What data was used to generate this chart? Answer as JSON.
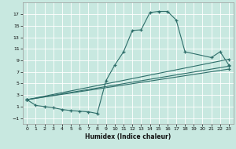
{
  "xlabel": "Humidex (Indice chaleur)",
  "bg_color": "#c8e8e0",
  "line_color": "#2e6e6a",
  "xlim": [
    -0.5,
    23.5
  ],
  "ylim": [
    -2.0,
    19.0
  ],
  "xticks": [
    0,
    1,
    2,
    3,
    4,
    5,
    6,
    7,
    8,
    9,
    10,
    11,
    12,
    13,
    14,
    15,
    16,
    17,
    18,
    19,
    20,
    21,
    22,
    23
  ],
  "yticks": [
    -1,
    1,
    3,
    5,
    7,
    9,
    11,
    13,
    15,
    17
  ],
  "curve1_x": [
    0,
    1,
    2,
    3,
    4,
    5,
    6,
    7,
    8,
    9,
    10,
    11,
    12,
    13,
    14,
    15,
    16,
    17,
    18,
    21,
    22,
    23
  ],
  "curve1_y": [
    2.2,
    1.2,
    1.0,
    0.8,
    0.5,
    0.3,
    0.2,
    0.1,
    -0.2,
    5.5,
    8.2,
    10.5,
    14.2,
    14.3,
    17.3,
    17.5,
    17.5,
    16.0,
    10.5,
    9.5,
    10.5,
    8.2
  ],
  "line2_x": [
    0,
    23
  ],
  "line2_y": [
    2.2,
    9.2
  ],
  "line3_x": [
    0,
    23
  ],
  "line3_y": [
    2.2,
    8.0
  ],
  "line4_x": [
    0,
    23
  ],
  "line4_y": [
    2.2,
    7.5
  ],
  "figwidth": 3.0,
  "figheight": 1.9,
  "dpi": 100
}
